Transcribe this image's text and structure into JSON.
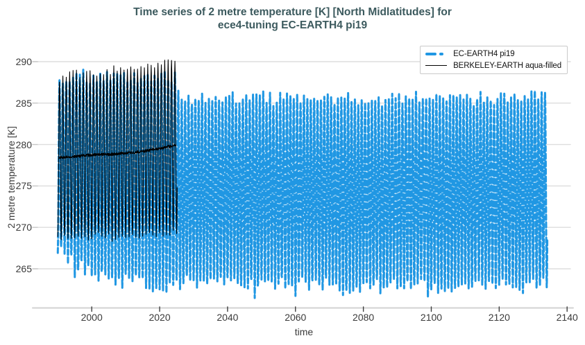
{
  "title": {
    "line1": "Time series of 2 metre temperature [K] [North Midlatitudes] for",
    "line2": "ece4-tuning EC-EARTH4 pi19"
  },
  "axes": {
    "x_label": "time",
    "y_label": "2 metre temperature [K]"
  },
  "legend": {
    "items": [
      {
        "label": "EC-EARTH4 pi19",
        "style": "thick-dashed",
        "color": "#2097e3"
      },
      {
        "label": "BERKELEY-EARTH aqua-filled",
        "style": "thin-solid",
        "color": "#000000"
      }
    ]
  },
  "colors": {
    "series_blue": "#2097e3",
    "series_black": "#000000",
    "title": "#3c5a5e",
    "grid": "#dddddd",
    "spine": "#d2d2d2",
    "tick_text": "#3a3a3a"
  },
  "chart_data": {
    "type": "line",
    "title": "Time series of 2 metre temperature [K] [North Midlatitudes] for ece4-tuning EC-EARTH4 pi19",
    "xlabel": "time",
    "ylabel": "2 metre temperature [K]",
    "xlim": [
      1984.2,
      2141.0
    ],
    "ylim": [
      260.3,
      292.4
    ],
    "x_ticks": [
      2000,
      2020,
      2040,
      2060,
      2080,
      2100,
      2120,
      2140
    ],
    "y_ticks": [
      290,
      285,
      280,
      275,
      270,
      265
    ],
    "grid": "horizontal-only",
    "legend_position": "top-right",
    "series": [
      {
        "name": "EC-EARTH4 pi19",
        "color": "#2097e3",
        "style": "dashed",
        "line_width": 3,
        "points_per_year": 12,
        "x_start": 1990.0,
        "x_end": 2134.2,
        "seed": 1,
        "year_jitter_K": 0.7,
        "month_noise_K": 0.35,
        "deep_winter_chance": 0.1,
        "deep_winter_K": 1.1,
        "summer_max_envelope": [
          [
            1990,
            287.9
          ],
          [
            1994,
            288.2
          ],
          [
            2000,
            288.1
          ],
          [
            2008,
            288.2
          ],
          [
            2016,
            288.3
          ],
          [
            2022,
            288.5
          ],
          [
            2024.9,
            288.2
          ],
          [
            2025.6,
            285.6
          ],
          [
            2032,
            285.4
          ],
          [
            2050,
            285.5
          ],
          [
            2070,
            285.5
          ],
          [
            2090,
            285.6
          ],
          [
            2110,
            285.4
          ],
          [
            2124,
            285.6
          ],
          [
            2130,
            285.9
          ],
          [
            2134.2,
            286.1
          ]
        ],
        "winter_min_envelope": [
          [
            1990,
            267.4
          ],
          [
            1993,
            266.5
          ],
          [
            1997,
            265.1
          ],
          [
            2002,
            264.1
          ],
          [
            2008,
            263.7
          ],
          [
            2014,
            263.4
          ],
          [
            2019,
            262.8
          ],
          [
            2024,
            263.2
          ],
          [
            2032,
            263.5
          ],
          [
            2046,
            263.1
          ],
          [
            2060,
            263.4
          ],
          [
            2074,
            263.0
          ],
          [
            2088,
            263.3
          ],
          [
            2102,
            262.9
          ],
          [
            2116,
            263.2
          ],
          [
            2126,
            263.0
          ],
          [
            2134.2,
            263.3
          ]
        ]
      },
      {
        "name": "BERKELEY-EARTH aqua-filled",
        "color": "#000000",
        "style": "solid",
        "line_width": 1.1,
        "points_per_year": 12,
        "x_start": 1990.0,
        "x_end": 2025.2,
        "seed": 2,
        "year_jitter_K": 0.5,
        "month_noise_K": 0.3,
        "summer_max_envelope": [
          [
            1990,
            289.1
          ],
          [
            1996,
            289.2
          ],
          [
            2002,
            289.2
          ],
          [
            2008,
            289.3
          ],
          [
            2014,
            289.4
          ],
          [
            2019,
            289.5
          ],
          [
            2023,
            289.8
          ],
          [
            2025.2,
            289.6
          ]
        ],
        "winter_min_envelope": [
          [
            1990,
            269.7
          ],
          [
            1996,
            269.5
          ],
          [
            2002,
            269.4
          ],
          [
            2008,
            269.3
          ],
          [
            2014,
            269.1
          ],
          [
            2019,
            269.0
          ],
          [
            2025.2,
            268.9
          ]
        ],
        "running_mean": [
          [
            1990,
            278.4
          ],
          [
            1993,
            278.5
          ],
          [
            1996,
            278.6
          ],
          [
            1999,
            278.7
          ],
          [
            2002,
            278.8
          ],
          [
            2005,
            278.8
          ],
          [
            2008,
            278.9
          ],
          [
            2011,
            279.0
          ],
          [
            2014,
            279.1
          ],
          [
            2017,
            279.3
          ],
          [
            2020,
            279.5
          ],
          [
            2022,
            279.7
          ],
          [
            2024.5,
            279.9
          ]
        ]
      }
    ]
  }
}
